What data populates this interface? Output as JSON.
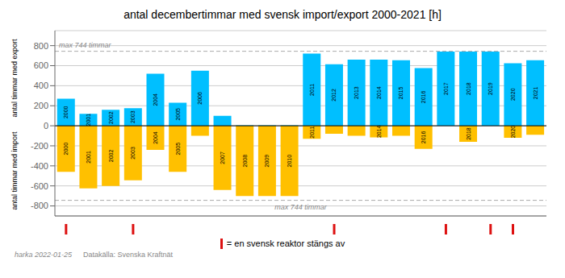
{
  "chart_data": {
    "type": "bar",
    "title": "antal decembertimmar med svensk import/export 2000-2021 [h]",
    "y_labels": [
      "antal timmar med export",
      "antal timmar med import"
    ],
    "categories": [
      2000,
      2001,
      2002,
      2003,
      2004,
      2005,
      2006,
      2007,
      2008,
      2009,
      2010,
      2011,
      2012,
      2013,
      2014,
      2015,
      2016,
      2017,
      2018,
      2019,
      2020,
      2021
    ],
    "series": [
      {
        "color": "#00bfff",
        "values": [
          270,
          120,
          160,
          175,
          520,
          230,
          550,
          100,
          5,
          5,
          5,
          720,
          615,
          660,
          660,
          655,
          575,
          740,
          740,
          740,
          625,
          655
        ]
      },
      {
        "color": "#ffc000",
        "values": [
          -460,
          -625,
          -600,
          -545,
          -240,
          -460,
          -100,
          -640,
          -700,
          -700,
          -700,
          -130,
          -80,
          -100,
          -115,
          -100,
          -230,
          0,
          -160,
          0,
          -120,
          -90
        ]
      }
    ],
    "stacked": true,
    "ylim": [
      -900,
      950
    ],
    "yticks": [
      -800,
      -600,
      -400,
      -200,
      0,
      200,
      400,
      600,
      800
    ],
    "grid": true,
    "reference_lines": [
      {
        "value": 744,
        "label": "max 744 timmar"
      },
      {
        "value": -744,
        "label": "max 744 timmar"
      }
    ],
    "reactor_shutdowns": {
      "name": "= en svensk reaktor stängs av",
      "color": "#dd1111",
      "categories": [
        2000,
        2003,
        2012,
        2017,
        2019,
        2020
      ]
    },
    "footnotes": [
      "harka 2022-01-25",
      "Datakälla: Svenska Kraftnät"
    ]
  }
}
